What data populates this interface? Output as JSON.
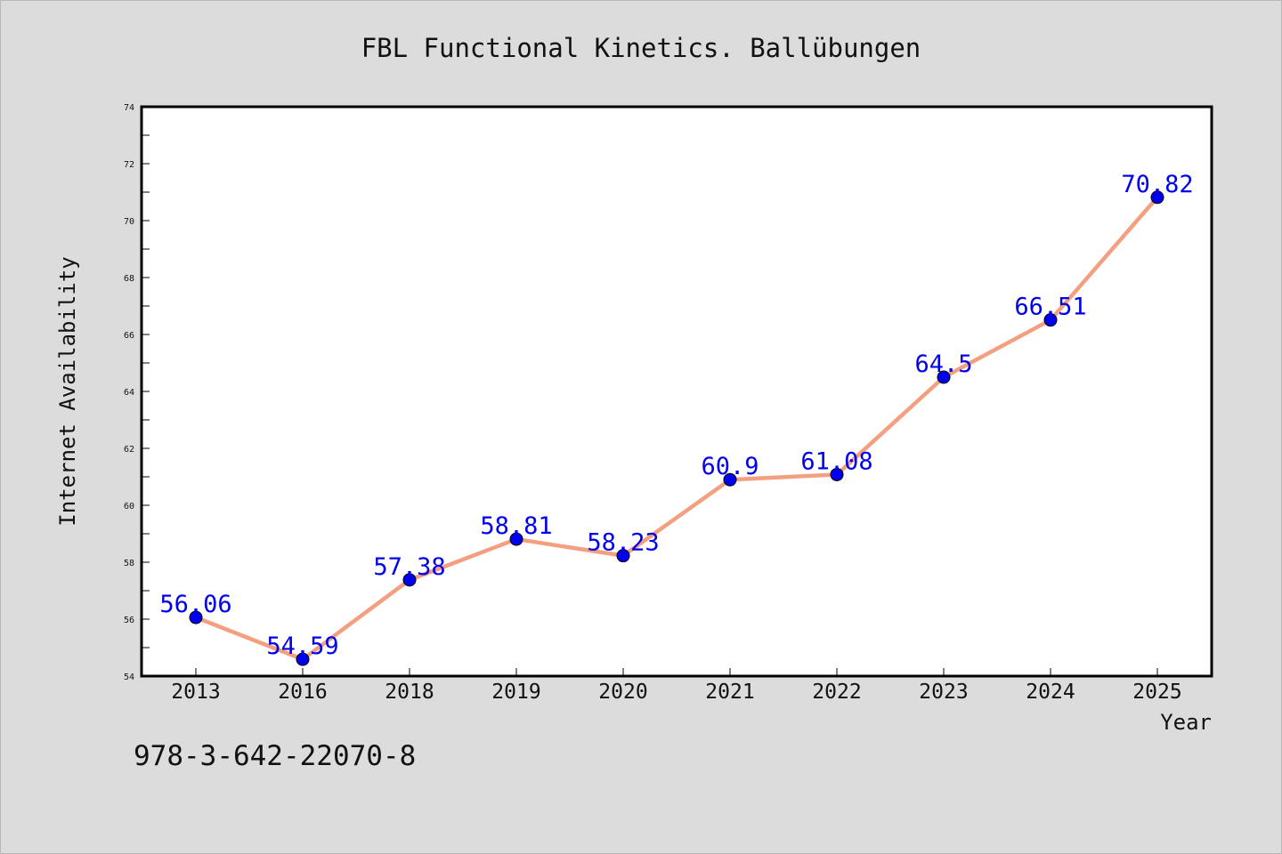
{
  "figure": {
    "footer_text": "978-3-642-22070-8"
  },
  "colors": {
    "background": "#dcdcdc",
    "plot_area": "#ffffff",
    "line": "#f4a080",
    "marker": "#0000ee",
    "data_label": "#0000ee",
    "text": "#111111"
  },
  "chart_data": {
    "type": "line",
    "title": "FBL Functional Kinetics. Ballübungen",
    "xlabel": "Year",
    "ylabel": "Internet Availability",
    "categories": [
      "2013",
      "2016",
      "2018",
      "2019",
      "2020",
      "2021",
      "2022",
      "2023",
      "2024",
      "2025"
    ],
    "series": [
      {
        "values": [
          56.06,
          54.59,
          57.38,
          58.81,
          58.23,
          60.9,
          61.08,
          64.5,
          66.51,
          70.82
        ],
        "labels": [
          "56.06",
          "54.59",
          "57.38",
          "58.81",
          "58.23",
          "60.9",
          "61.08",
          "64.5",
          "66.51",
          "70.82"
        ]
      }
    ],
    "ylim": [
      54,
      74
    ],
    "yticks": [
      54,
      56,
      58,
      60,
      62,
      64,
      66,
      68,
      70,
      72,
      74
    ],
    "grid": false,
    "legend": "none"
  }
}
